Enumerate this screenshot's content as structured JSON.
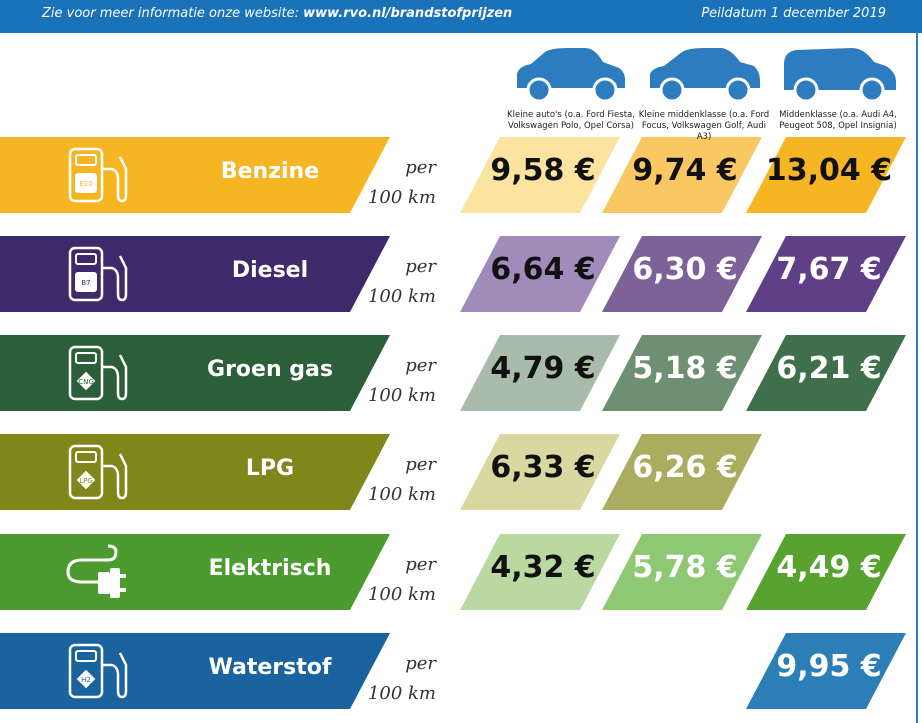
{
  "header": {
    "info_prefix": "Zie voor meer informatie onze website: ",
    "info_link": "www.rvo.nl/brandstofprijzen",
    "date": "Peildatum 1 december 2019"
  },
  "per_line1": "per",
  "per_line2": "100 km",
  "colors": {
    "header_bar": "#1a72b8",
    "benzine": [
      "#f6b623",
      "#fde3a0",
      "#fac862",
      "#f6b623"
    ],
    "diesel": [
      "#3e2a6b",
      "#a08bbb",
      "#7d6299",
      "#5f3f86"
    ],
    "groen_gas": [
      "#2c5e3a",
      "#a9bba9",
      "#6e8f74",
      "#40704b"
    ],
    "lpg": [
      "#7f861a",
      "#d9d8a1",
      "#acac61",
      "#cfd0a6"
    ],
    "elektrisch": [
      "#4c9b2f",
      "#bad8a1",
      "#8ec872",
      "#58a22f"
    ],
    "waterstof": [
      "#1a639e",
      "#2b7fb6",
      "#2b7fb6",
      "#2b7fb6"
    ]
  },
  "chart_data": {
    "type": "table",
    "unit": "€ per 100 km",
    "categories": [
      "Kleine auto's (o.a. Ford Fiesta, Volkswagen Polo, Opel Corsa)",
      "Kleine middenklasse (o.a. Ford Focus, Volkswagen Golf, Audi A3)",
      "Middenklasse (o.a. Audi A4, Peugeot 508, Opel Insignia)"
    ],
    "category_labels": [
      [
        "Kleine auto's (o.a. Ford Fiesta,",
        "Volkswagen Polo, Opel Corsa)"
      ],
      [
        "Kleine middenklasse (o.a. Ford",
        "Focus, Volkswagen Golf, Audi A3)"
      ],
      [
        "Middenklasse (o.a. Audi A4,",
        "Peugeot 508, Opel Insignia)"
      ]
    ],
    "series": [
      {
        "name": "Benzine",
        "icon_label": "E10",
        "values": [
          9.58,
          9.74,
          13.04
        ],
        "labels": [
          "9,58 €",
          "9,74 €",
          "13,04 €"
        ]
      },
      {
        "name": "Diesel",
        "icon_label": "B7",
        "values": [
          6.64,
          6.3,
          7.67
        ],
        "labels": [
          "6,64 €",
          "6,30 €",
          "7,67 €"
        ]
      },
      {
        "name": "Groen gas",
        "icon_label": "CNG",
        "values": [
          4.79,
          5.18,
          6.21
        ],
        "labels": [
          "4,79 €",
          "5,18 €",
          "6,21 €"
        ]
      },
      {
        "name": "LPG",
        "icon_label": "LPG",
        "values": [
          6.33,
          6.26,
          null
        ],
        "labels": [
          "6,33 €",
          "6,26 €",
          ""
        ]
      },
      {
        "name": "Elektrisch",
        "icon_label": "",
        "values": [
          4.32,
          5.78,
          4.49
        ],
        "labels": [
          "4,32 €",
          "5,78 €",
          "4,49 €"
        ]
      },
      {
        "name": "Waterstof",
        "icon_label": "H2",
        "values": [
          null,
          null,
          9.95
        ],
        "labels": [
          "",
          "",
          "9,95 €"
        ]
      }
    ]
  }
}
